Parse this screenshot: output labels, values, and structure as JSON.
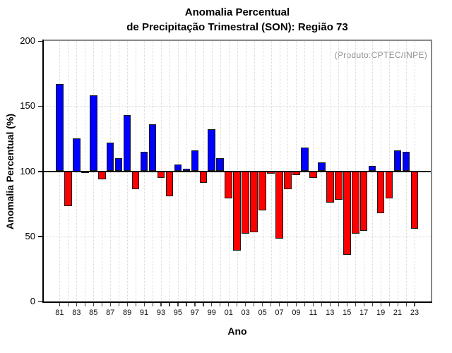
{
  "chart_data": {
    "type": "bar",
    "title": "Anomalia Percentual",
    "subtitle": "de Precipitação Trimestral (SON): Região 73",
    "annotation": "(Produto:CPTEC/INPE)",
    "xlabel": "Ano",
    "ylabel": "Anomalia Percentual (%)",
    "ylim": [
      0,
      200
    ],
    "yticks": [
      0,
      50,
      100,
      150,
      200
    ],
    "gridline_values": [
      50,
      150
    ],
    "baseline": 100,
    "grid": "dotted",
    "legend": null,
    "colors": {
      "above_baseline": "#0000ff",
      "below_baseline": "#ff0000",
      "bar_outline": "#1a1a1a",
      "gridline": "#d9d9d9",
      "axis": "#000000",
      "box_border": "#888888",
      "zero_line": "#111111",
      "annotation_text": "#909090"
    },
    "x_tick_labels": [
      "81",
      "83",
      "85",
      "87",
      "89",
      "91",
      "93",
      "95",
      "97",
      "99",
      "01",
      "03",
      "05",
      "07",
      "09",
      "11",
      "13",
      "15",
      "17",
      "19",
      "21",
      "23"
    ],
    "years": [
      1981,
      1982,
      1983,
      1984,
      1985,
      1986,
      1987,
      1988,
      1989,
      1990,
      1991,
      1992,
      1993,
      1994,
      1995,
      1996,
      1997,
      1998,
      1999,
      2000,
      2001,
      2002,
      2003,
      2004,
      2005,
      2006,
      2007,
      2008,
      2009,
      2010,
      2011,
      2012,
      2013,
      2014,
      2015,
      2016,
      2017,
      2018,
      2019,
      2020,
      2021,
      2022,
      2023
    ],
    "values": [
      167,
      73,
      125,
      100,
      158,
      94,
      122,
      110,
      143,
      86,
      115,
      136,
      95,
      81,
      105,
      102,
      116,
      91,
      132,
      110,
      79,
      39,
      52,
      53,
      70,
      98,
      48,
      86,
      97,
      118,
      95,
      107,
      76,
      78,
      36,
      52,
      54,
      104,
      68,
      79,
      116,
      115,
      56
    ]
  }
}
